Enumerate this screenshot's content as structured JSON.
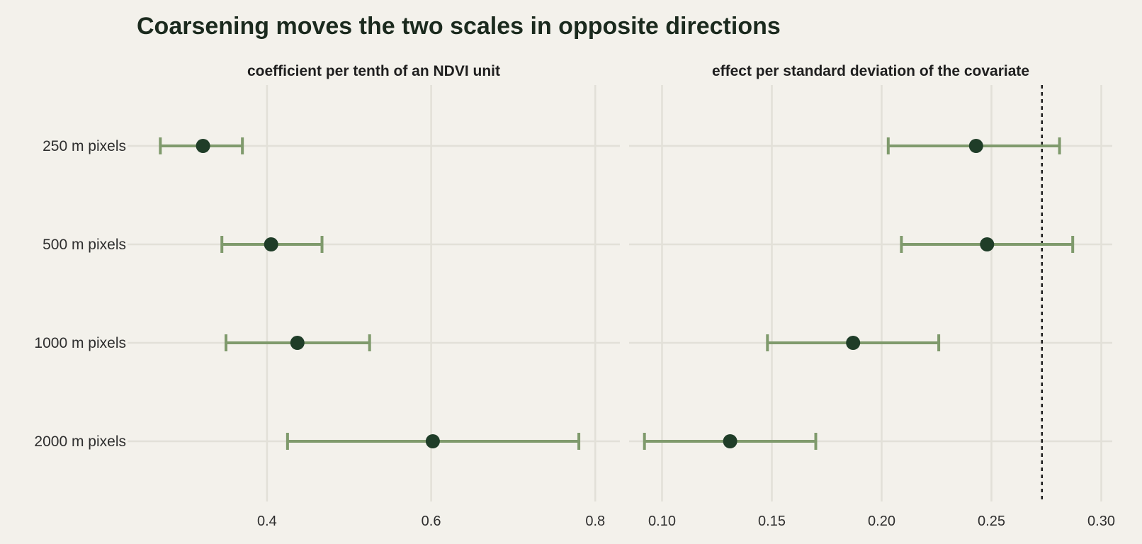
{
  "title": "Coarsening moves the two scales in opposite directions",
  "categories": [
    "250 m pixels",
    "500 m pixels",
    "1000 m pixels",
    "2000 m pixels"
  ],
  "colors": {
    "background": "#f3f1eb",
    "grid": "#e2e0d8",
    "interval": "#7f9a6c",
    "point": "#1f3d28",
    "reference_line": "#1a1a1a",
    "title_text": "#1b2a1e"
  },
  "chart_data": [
    {
      "type": "scatter",
      "subtype": "point-range",
      "title": "coefficient per tenth of an NDVI unit",
      "xlabel": "",
      "ylabel": "",
      "xlim": [
        0.23,
        0.83
      ],
      "xticks": [
        0.4,
        0.6,
        0.8
      ],
      "xtick_labels": [
        "0.4",
        "0.6",
        "0.8"
      ],
      "grid": true,
      "categories": [
        "250 m pixels",
        "500 m pixels",
        "1000 m pixels",
        "2000 m pixels"
      ],
      "series": [
        {
          "estimate": [
            0.322,
            0.405,
            0.437,
            0.602
          ],
          "lower": [
            0.27,
            0.345,
            0.35,
            0.425
          ],
          "upper": [
            0.37,
            0.467,
            0.525,
            0.78
          ]
        }
      ]
    },
    {
      "type": "scatter",
      "subtype": "point-range",
      "title": "effect per standard deviation of the covariate",
      "xlabel": "",
      "ylabel": "",
      "xlim": [
        0.085,
        0.305
      ],
      "xticks": [
        0.1,
        0.15,
        0.2,
        0.25,
        0.3
      ],
      "xtick_labels": [
        "0.10",
        "0.15",
        "0.20",
        "0.25",
        "0.30"
      ],
      "grid": true,
      "reference_line": {
        "x": 0.273,
        "style": "dotted"
      },
      "categories": [
        "250 m pixels",
        "500 m pixels",
        "1000 m pixels",
        "2000 m pixels"
      ],
      "series": [
        {
          "estimate": [
            0.243,
            0.248,
            0.187,
            0.131
          ],
          "lower": [
            0.203,
            0.209,
            0.148,
            0.092
          ],
          "upper": [
            0.281,
            0.287,
            0.226,
            0.17
          ]
        }
      ]
    }
  ]
}
